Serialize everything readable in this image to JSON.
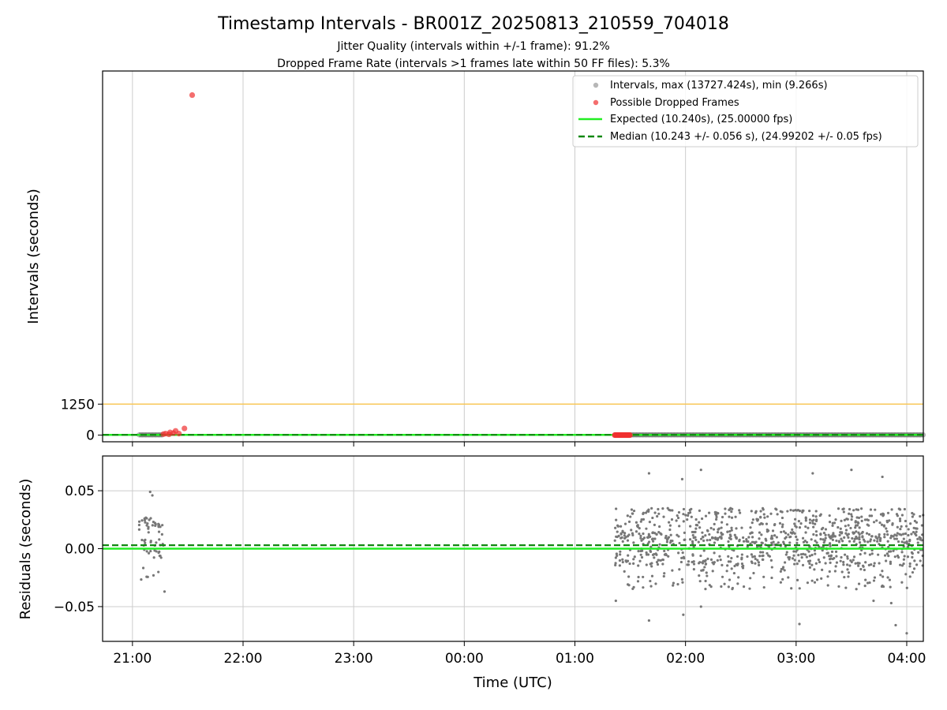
{
  "chart_data": {
    "type": "scatter",
    "title": "Timestamp Intervals - BR001Z_20250813_210559_704018",
    "subtitle_1": "Jitter Quality (intervals within +/-1 frame): 91.2%",
    "subtitle_2": "Dropped Frame Rate (intervals >1 frames late within 50 FF files): 5.3%",
    "xlabel": "Time (UTC)",
    "x_tick_labels": [
      "21:00",
      "22:00",
      "23:00",
      "00:00",
      "01:00",
      "02:00",
      "03:00",
      "04:00"
    ],
    "x_tick_hours": [
      0,
      1,
      2,
      3,
      4,
      5,
      6,
      7
    ],
    "x_range_hours_from_2100": [
      -0.27,
      7.15
    ],
    "grid": true,
    "legend_position": "top-right",
    "top_panel": {
      "ylabel": "Intervals (seconds)",
      "ylim": [
        -270,
        14700
      ],
      "y_ticks": [
        0,
        1250
      ],
      "y_tick_labels": [
        "0",
        "1250"
      ],
      "reference_line_1250": {
        "value": 1250,
        "color": "#f8c85a"
      },
      "expected_line": {
        "value": 10.24,
        "color": "#22ee22"
      },
      "median_line": {
        "value": 10.243,
        "color": "#118811"
      },
      "intervals_segments": [
        {
          "x_start": 0.06,
          "x_end": 0.27
        },
        {
          "x_start": 4.5,
          "x_end": 7.15
        }
      ],
      "dropped_frames": [
        {
          "x": 0.54,
          "y": 13727.424
        },
        {
          "x": 0.47,
          "y": 270
        },
        {
          "x": 0.39,
          "y": 170
        },
        {
          "x": 0.34,
          "y": 110
        },
        {
          "x": 0.3,
          "y": 60
        },
        {
          "x": 0.28,
          "y": 40
        },
        {
          "x": 0.37,
          "y": 80
        },
        {
          "x": 0.42,
          "y": 60
        },
        {
          "x": 0.33,
          "y": 30
        }
      ],
      "dropped_cluster": {
        "x_start": 4.36,
        "x_end": 4.5,
        "y": 0
      }
    },
    "bottom_panel": {
      "ylabel": "Residuals (seconds)",
      "ylim": [
        -0.08,
        0.08
      ],
      "y_ticks": [
        -0.05,
        0.0,
        0.05
      ],
      "y_tick_labels": [
        "−0.05",
        "0.00",
        "0.05"
      ],
      "expected_line": {
        "value": 0.0,
        "color": "#22ee22"
      },
      "median_line": {
        "value": 0.003,
        "color": "#118811"
      },
      "point_color": "#777777",
      "cluster_1": {
        "x_start": 0.06,
        "x_end": 0.28,
        "count": 60
      },
      "cluster_2": {
        "x_start": 4.36,
        "x_end": 7.15,
        "count": 1000
      },
      "outliers": [
        {
          "x": 0.29,
          "y": -0.037
        },
        {
          "x": 0.16,
          "y": 0.049
        },
        {
          "x": 0.18,
          "y": 0.046
        },
        {
          "x": 4.37,
          "y": -0.045
        },
        {
          "x": 4.67,
          "y": 0.065
        },
        {
          "x": 4.67,
          "y": -0.062
        },
        {
          "x": 4.97,
          "y": 0.06
        },
        {
          "x": 4.98,
          "y": -0.057
        },
        {
          "x": 5.14,
          "y": 0.068
        },
        {
          "x": 5.14,
          "y": -0.05
        },
        {
          "x": 6.03,
          "y": -0.065
        },
        {
          "x": 6.15,
          "y": 0.065
        },
        {
          "x": 6.5,
          "y": 0.068
        },
        {
          "x": 6.78,
          "y": 0.062
        },
        {
          "x": 6.9,
          "y": -0.066
        },
        {
          "x": 7.0,
          "y": -0.073
        },
        {
          "x": 6.86,
          "y": -0.047
        },
        {
          "x": 6.7,
          "y": -0.045
        }
      ]
    },
    "legend": [
      {
        "label": "Intervals, max (13727.424s), min (9.266s)",
        "marker": "dot",
        "color": "#999999"
      },
      {
        "label": "Possible Dropped Frames",
        "marker": "dot",
        "color": "#f03030"
      },
      {
        "label": "Expected (10.240s), (25.00000 fps)",
        "marker": "solid",
        "color": "#22ee22"
      },
      {
        "label": "Median (10.243 +/- 0.056 s), (24.99202 +/- 0.05 fps)",
        "marker": "dashed",
        "color": "#118811"
      }
    ]
  }
}
